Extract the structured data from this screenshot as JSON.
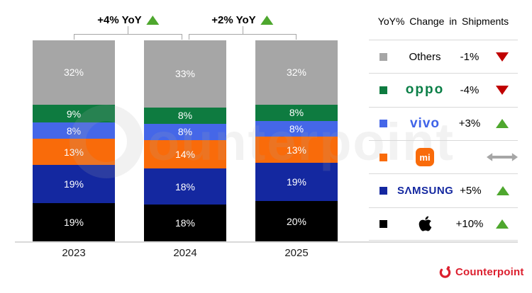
{
  "chart_data": {
    "type": "bar",
    "stacked": true,
    "title": "",
    "xlabel": "",
    "ylabel": "",
    "value_suffix": "%",
    "categories": [
      "2023",
      "2024",
      "2025"
    ],
    "series": [
      {
        "name": "Others",
        "color": "#a6a6a6",
        "values": [
          32,
          33,
          32
        ]
      },
      {
        "name": "OPPO",
        "color": "#0e7b40",
        "values": [
          9,
          8,
          8
        ]
      },
      {
        "name": "vivo",
        "color": "#4567e8",
        "values": [
          8,
          8,
          8
        ]
      },
      {
        "name": "Xiaomi",
        "color": "#f96b0a",
        "values": [
          13,
          14,
          13
        ]
      },
      {
        "name": "Samsung",
        "color": "#1428a0",
        "values": [
          19,
          18,
          19
        ]
      },
      {
        "name": "Apple",
        "color": "#000000",
        "values": [
          19,
          18,
          20
        ]
      }
    ],
    "annotations": [
      {
        "text": "+4% YoY",
        "between": [
          "2023",
          "2024"
        ],
        "direction": "up"
      },
      {
        "text": "+2% YoY",
        "between": [
          "2024",
          "2025"
        ],
        "direction": "up"
      }
    ],
    "legend_position": "right",
    "grid": false
  },
  "legend": {
    "title": "YoY% Change in Shipments",
    "rows": [
      {
        "brand": "Others",
        "logo_text": "Others",
        "value": "-1%",
        "trend": "down"
      },
      {
        "brand": "OPPO",
        "logo_text": "oppo",
        "value": "-4%",
        "trend": "down"
      },
      {
        "brand": "vivo",
        "logo_text": "vivo",
        "value": "+3%",
        "trend": "up"
      },
      {
        "brand": "Xiaomi",
        "logo_text": "mi",
        "value": "",
        "trend": "flat"
      },
      {
        "brand": "Samsung",
        "logo_text": "SΛMSUNG",
        "value": "+5%",
        "trend": "up"
      },
      {
        "brand": "Apple",
        "logo_text": "",
        "value": "+10%",
        "trend": "up"
      }
    ]
  },
  "footer": {
    "brand": "Counterpoint"
  },
  "watermark": {
    "text": "ounterpoint"
  },
  "colors": {
    "up_green": "#4ea72e",
    "down_red": "#c00000",
    "flat_gray": "#a6a6a6",
    "bracket_gray": "#a6a6a6",
    "divider_gray": "#d9d9d9",
    "counterpoint_red": "#dc1f2e"
  }
}
